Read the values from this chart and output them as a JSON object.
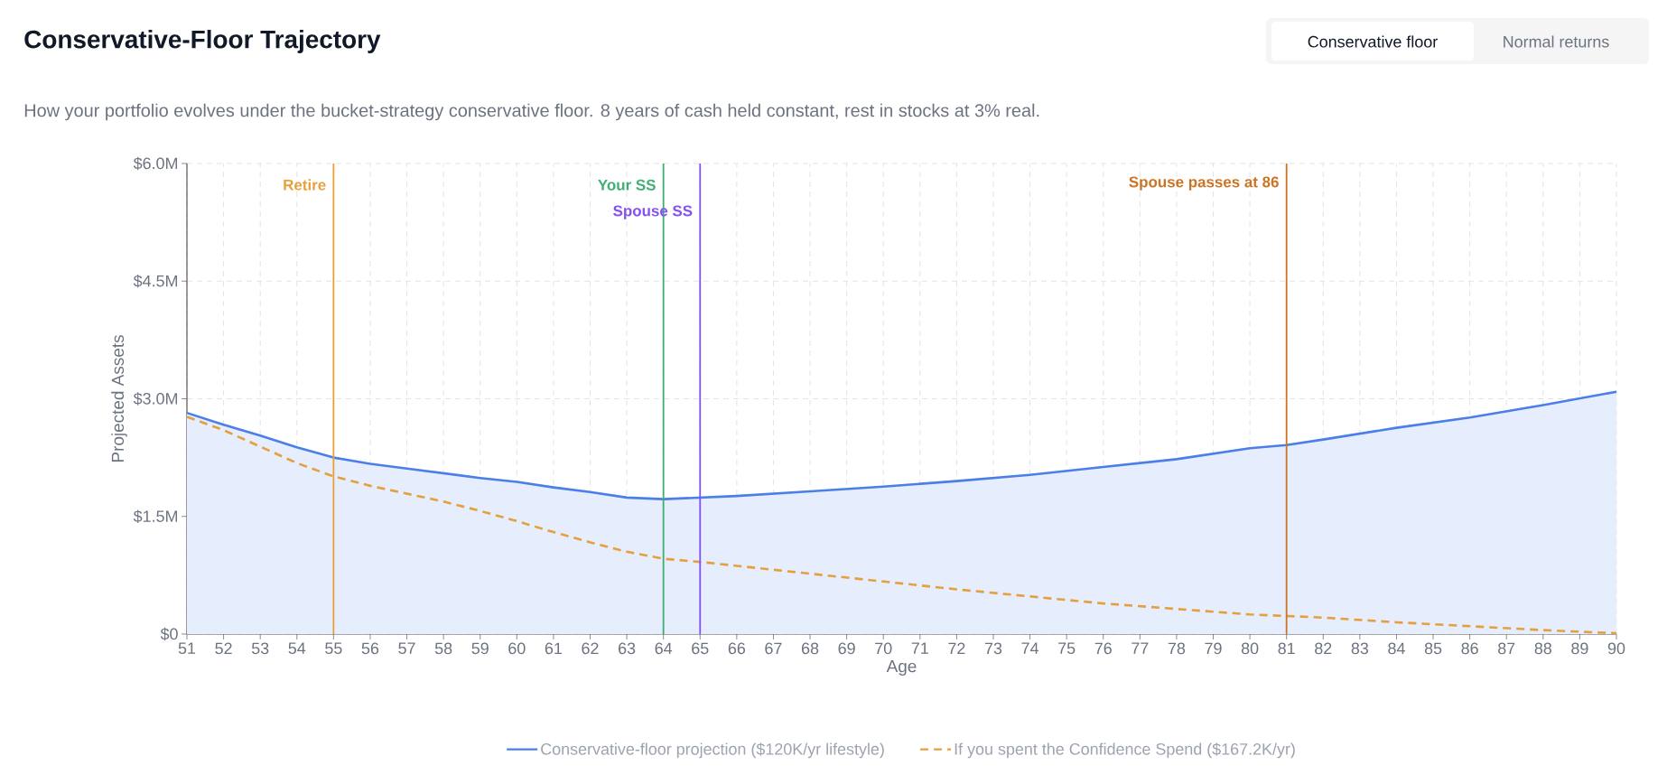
{
  "chart_data": {
    "type": "line",
    "title": "Conservative-Floor Trajectory",
    "subtitle": "How your portfolio evolves under the bucket-strategy conservative floor. 8 years of cash held constant, rest in stocks at 3% real.",
    "xlabel": "Age",
    "ylabel": "Projected Assets",
    "annotations": [
      "Conservative floor",
      "Normal returns"
    ],
    "xlim": [
      51,
      90
    ],
    "ylim": [
      0,
      6
    ],
    "xticks": [
      51,
      52,
      53,
      54,
      55,
      56,
      57,
      58,
      59,
      60,
      61,
      62,
      63,
      64,
      65,
      66,
      67,
      68,
      69,
      70,
      71,
      72,
      73,
      74,
      75,
      76,
      77,
      78,
      79,
      80,
      81,
      82,
      83,
      84,
      85,
      86,
      87,
      88,
      89,
      90
    ],
    "yticks": [
      {
        "value": 0,
        "label": "$0"
      },
      {
        "value": 1.5,
        "label": "$1.5M"
      },
      {
        "value": 3,
        "label": "$3.0M"
      },
      {
        "value": 4.5,
        "label": "$4.5M"
      },
      {
        "value": 6,
        "label": "$6.0M"
      }
    ],
    "grid": true,
    "legend": "bottom",
    "ref_lines": [
      {
        "axis": "x",
        "value": 55,
        "label": "Retire",
        "color": "#e9a03b"
      },
      {
        "axis": "x",
        "value": 64,
        "label": "Your SS",
        "color": "#3fae75"
      },
      {
        "axis": "x",
        "value": 65,
        "label": "Spouse SS",
        "color": "#8352f0"
      },
      {
        "axis": "x",
        "value": 81,
        "label": "Spouse passes at 86",
        "color": "#cc7425"
      }
    ],
    "series": [
      {
        "name": "Conservative-floor projection ($120K/yr lifestyle)",
        "type": "area",
        "color": "#4a7ee8",
        "x": [
          51,
          52,
          53,
          54,
          55,
          56,
          57,
          58,
          59,
          60,
          61,
          62,
          63,
          64,
          65,
          66,
          68,
          70,
          72,
          74,
          76,
          78,
          80,
          81,
          82,
          84,
          86,
          88,
          90
        ],
        "values": [
          2.82,
          2.67,
          2.53,
          2.38,
          2.25,
          2.17,
          2.11,
          2.05,
          1.99,
          1.94,
          1.87,
          1.81,
          1.74,
          1.72,
          1.74,
          1.76,
          1.82,
          1.88,
          1.95,
          2.03,
          2.13,
          2.23,
          2.37,
          2.41,
          2.48,
          2.63,
          2.76,
          2.92,
          3.09
        ]
      },
      {
        "name": "If you spent the Confidence Spend ($167.2K/yr)",
        "line_style": "dashed",
        "color": "#e4a03e",
        "x": [
          51,
          52,
          53,
          54,
          55,
          56,
          57,
          58,
          59,
          60,
          61,
          62,
          63,
          64,
          65,
          66,
          68,
          70,
          72,
          74,
          76,
          78,
          80,
          81,
          82,
          84,
          86,
          88,
          90
        ],
        "values": [
          2.77,
          2.6,
          2.39,
          2.18,
          2.01,
          1.89,
          1.79,
          1.69,
          1.57,
          1.44,
          1.3,
          1.17,
          1.05,
          0.96,
          0.92,
          0.87,
          0.77,
          0.67,
          0.57,
          0.48,
          0.39,
          0.32,
          0.25,
          0.23,
          0.21,
          0.15,
          0.1,
          0.05,
          0.01
        ]
      }
    ]
  }
}
